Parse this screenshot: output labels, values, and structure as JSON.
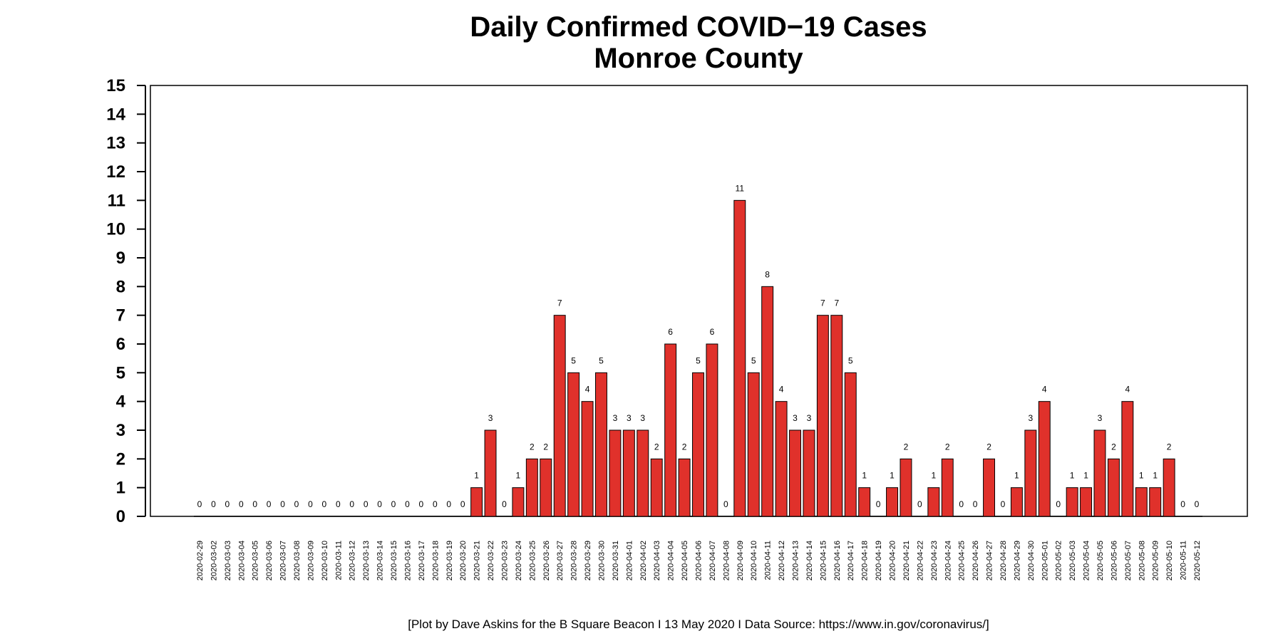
{
  "chart_data": {
    "type": "bar",
    "title": "Daily Confirmed COVID−19 Cases",
    "subtitle": "Monroe County",
    "xlabel": "",
    "ylabel": "",
    "ylim": [
      0,
      15
    ],
    "yticks": [
      "0",
      "1",
      "2",
      "3",
      "4",
      "5",
      "6",
      "7",
      "8",
      "9",
      "10",
      "11",
      "12",
      "13",
      "14",
      "15"
    ],
    "grid": false,
    "legend": "none",
    "bar_color": "#e0312b",
    "caption": "[Plot by Dave Askins for the B Square Beacon I 13 May 2020 I Data Source: https://www.in.gov/coronavirus/]",
    "categories": [
      "2020-02-29",
      "2020-03-02",
      "2020-03-03",
      "2020-03-04",
      "2020-03-05",
      "2020-03-06",
      "2020-03-07",
      "2020-03-08",
      "2020-03-09",
      "2020-03-10",
      "2020-03-11",
      "2020-03-12",
      "2020-03-13",
      "2020-03-14",
      "2020-03-15",
      "2020-03-16",
      "2020-03-17",
      "2020-03-18",
      "2020-03-19",
      "2020-03-20",
      "2020-03-21",
      "2020-03-22",
      "2020-03-23",
      "2020-03-24",
      "2020-03-25",
      "2020-03-26",
      "2020-03-27",
      "2020-03-28",
      "2020-03-29",
      "2020-03-30",
      "2020-03-31",
      "2020-04-01",
      "2020-04-02",
      "2020-04-03",
      "2020-04-04",
      "2020-04-05",
      "2020-04-06",
      "2020-04-07",
      "2020-04-08",
      "2020-04-09",
      "2020-04-10",
      "2020-04-11",
      "2020-04-12",
      "2020-04-13",
      "2020-04-14",
      "2020-04-15",
      "2020-04-16",
      "2020-04-17",
      "2020-04-18",
      "2020-04-19",
      "2020-04-20",
      "2020-04-21",
      "2020-04-22",
      "2020-04-23",
      "2020-04-24",
      "2020-04-25",
      "2020-04-26",
      "2020-04-27",
      "2020-04-28",
      "2020-04-29",
      "2020-04-30",
      "2020-05-01",
      "2020-05-02",
      "2020-05-03",
      "2020-05-04",
      "2020-05-05",
      "2020-05-06",
      "2020-05-07",
      "2020-05-08",
      "2020-05-09",
      "2020-05-10",
      "2020-05-11",
      "2020-05-12"
    ],
    "values": [
      0,
      0,
      0,
      0,
      0,
      0,
      0,
      0,
      0,
      0,
      0,
      0,
      0,
      0,
      0,
      0,
      0,
      0,
      0,
      0,
      1,
      3,
      0,
      1,
      2,
      2,
      7,
      5,
      4,
      5,
      3,
      3,
      3,
      2,
      6,
      2,
      5,
      6,
      0,
      11,
      5,
      8,
      4,
      3,
      3,
      7,
      7,
      5,
      1,
      0,
      1,
      2,
      0,
      1,
      2,
      0,
      0,
      2,
      0,
      1,
      3,
      4,
      0,
      1,
      1,
      3,
      2,
      4,
      1,
      1,
      2,
      0,
      0
    ]
  }
}
